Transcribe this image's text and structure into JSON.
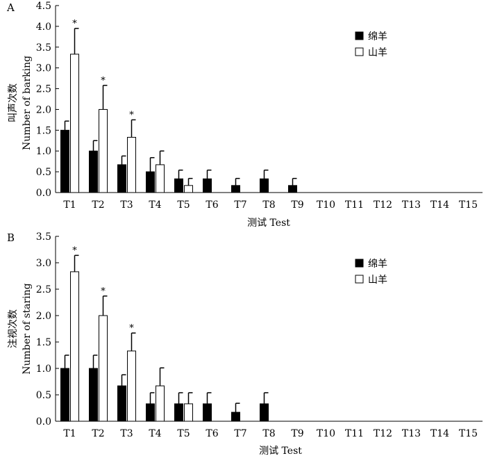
{
  "chart_data": [
    {
      "type": "bar",
      "panel_label": "A",
      "categories": [
        "T1",
        "T2",
        "T3",
        "T4",
        "T5",
        "T6",
        "T7",
        "T8",
        "T9",
        "T10",
        "T11",
        "T12",
        "T13",
        "T14",
        "T15"
      ],
      "series": [
        {
          "name": "绵羊",
          "color": "#000000",
          "values": [
            1.5,
            1.0,
            0.67,
            0.5,
            0.33,
            0.33,
            0.17,
            0.33,
            0.17,
            0,
            0,
            0,
            0,
            0,
            0
          ],
          "errors": [
            0.22,
            0.25,
            0.21,
            0.34,
            0.21,
            0.21,
            0.17,
            0.21,
            0.17,
            0,
            0,
            0,
            0,
            0,
            0
          ]
        },
        {
          "name": "山羊",
          "color": "#ffffff",
          "values": [
            3.33,
            2.0,
            1.33,
            0.67,
            0.17,
            0,
            0,
            0,
            0,
            0,
            0,
            0,
            0,
            0,
            0
          ],
          "errors": [
            0.62,
            0.58,
            0.42,
            0.33,
            0.17,
            0,
            0,
            0,
            0,
            0,
            0,
            0,
            0,
            0,
            0
          ]
        }
      ],
      "significance": [
        "*",
        "*",
        "*",
        "",
        "",
        "",
        "",
        "",
        "",
        "",
        "",
        "",
        "",
        "",
        ""
      ],
      "ylabel_cn": "叫声次数",
      "ylabel_en": "Number of barking",
      "xlabel": "测试 Test",
      "ylim": [
        0,
        4.5
      ],
      "yticks": [
        "0.0",
        "0.5",
        "1.0",
        "1.5",
        "2.0",
        "2.5",
        "3.0",
        "3.5",
        "4.0",
        "4.5"
      ],
      "legend_position": "top-right"
    },
    {
      "type": "bar",
      "panel_label": "B",
      "categories": [
        "T1",
        "T2",
        "T3",
        "T4",
        "T5",
        "T6",
        "T7",
        "T8",
        "T9",
        "T10",
        "T11",
        "T12",
        "T13",
        "T14",
        "T15"
      ],
      "series": [
        {
          "name": "绵羊",
          "color": "#000000",
          "values": [
            1.0,
            1.0,
            0.67,
            0.33,
            0.33,
            0.33,
            0.17,
            0.33,
            0,
            0,
            0,
            0,
            0,
            0,
            0
          ],
          "errors": [
            0.25,
            0.25,
            0.21,
            0.21,
            0.21,
            0.21,
            0.17,
            0.21,
            0,
            0,
            0,
            0,
            0,
            0,
            0
          ]
        },
        {
          "name": "山羊",
          "color": "#ffffff",
          "values": [
            2.83,
            2.0,
            1.33,
            0.67,
            0.33,
            0,
            0,
            0,
            0,
            0,
            0,
            0,
            0,
            0,
            0
          ],
          "errors": [
            0.31,
            0.37,
            0.34,
            0.34,
            0.21,
            0,
            0,
            0,
            0,
            0,
            0,
            0,
            0,
            0,
            0
          ]
        }
      ],
      "significance": [
        "*",
        "*",
        "*",
        "",
        "",
        "",
        "",
        "",
        "",
        "",
        "",
        "",
        "",
        "",
        ""
      ],
      "ylabel_cn": "注视次数",
      "ylabel_en": "Number of staring",
      "xlabel": "测试 Test",
      "ylim": [
        0,
        3.5
      ],
      "yticks": [
        "0.0",
        "0.5",
        "1.0",
        "1.5",
        "2.0",
        "2.5",
        "3.0",
        "3.5"
      ],
      "legend_position": "top-right"
    }
  ]
}
